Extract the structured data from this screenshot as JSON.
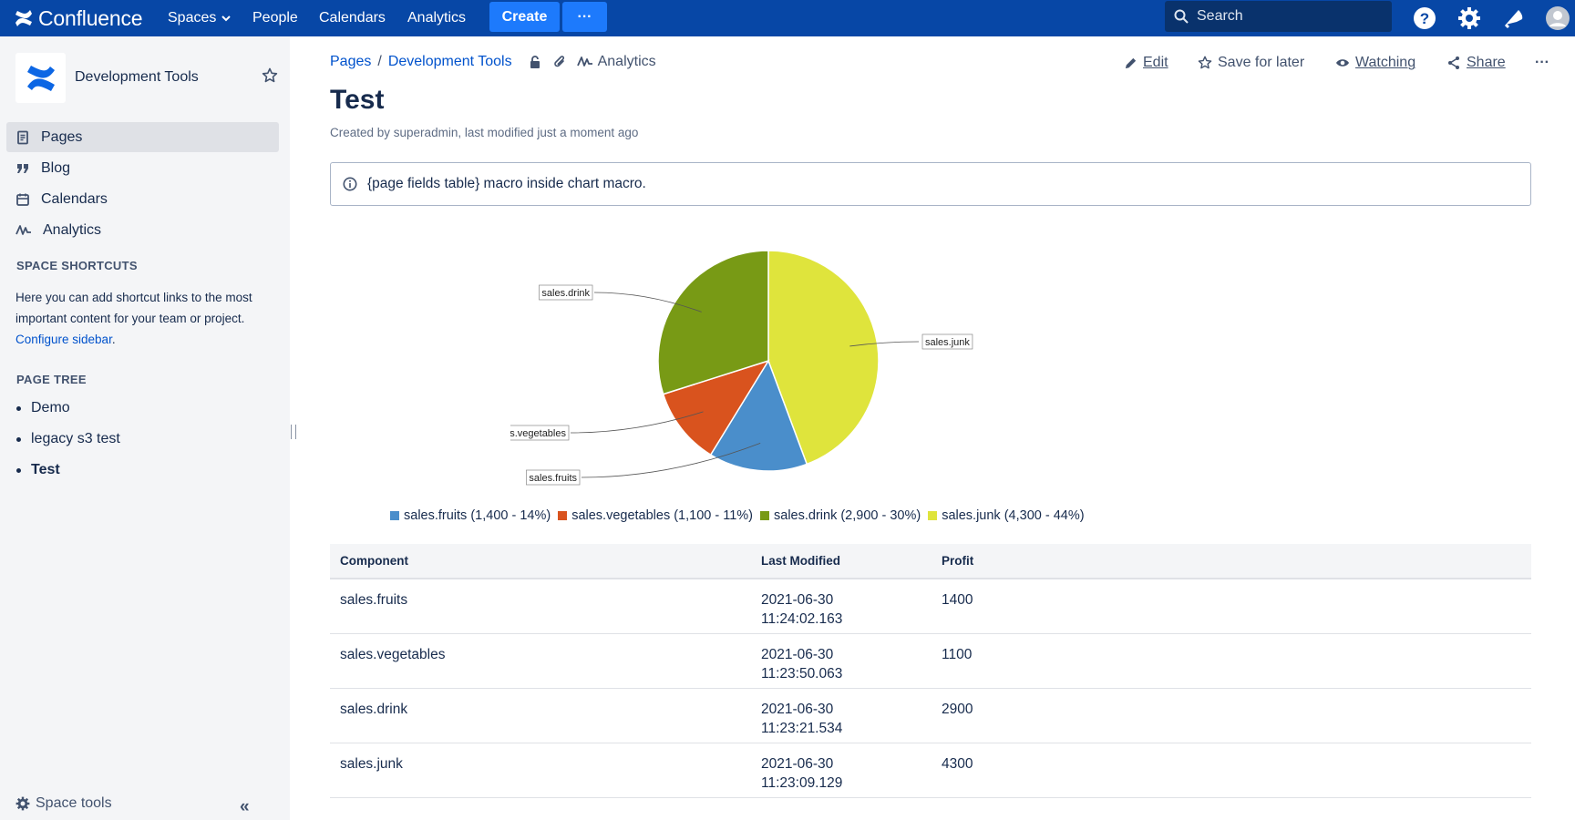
{
  "topbar": {
    "product_name": "Confluence",
    "nav": {
      "spaces": "Spaces",
      "people": "People",
      "calendars": "Calendars",
      "analytics": "Analytics"
    },
    "create_label": "Create",
    "more_label": "···",
    "search_placeholder": "Search",
    "icons": [
      "help-icon",
      "settings-icon",
      "notifications-icon",
      "avatar"
    ],
    "color": "#0747a6"
  },
  "sidebar": {
    "space_name": "Development Tools",
    "items": [
      {
        "label": "Pages",
        "icon": "pages-icon",
        "active": true
      },
      {
        "label": "Blog",
        "icon": "blog-quote-icon",
        "active": false
      },
      {
        "label": "Calendars",
        "icon": "calendar-icon",
        "active": false
      },
      {
        "label": "Analytics",
        "icon": "analytics-icon",
        "active": false
      }
    ],
    "shortcuts_heading": "SPACE SHORTCUTS",
    "shortcuts_text": "Here you can add shortcut links to the most important content for your team or project.",
    "configure_link": "Configure sidebar",
    "shortcuts_end": ".",
    "page_tree_heading": "PAGE TREE",
    "tree": [
      {
        "label": "Demo",
        "current": false
      },
      {
        "label": "legacy s3 test",
        "current": false
      },
      {
        "label": "Test",
        "current": true
      }
    ],
    "space_tools_label": "Space tools"
  },
  "page": {
    "breadcrumb": [
      "Pages",
      "Development Tools"
    ],
    "breadcrumb_sep": "/",
    "analytics_label": "Analytics",
    "actions": {
      "edit": "Edit",
      "save": "Save for later",
      "watching": "Watching",
      "share": "Share",
      "more": "···"
    },
    "title": "Test",
    "byline": "Created by superadmin, last modified just a moment ago",
    "info_text": "{page fields table} macro inside chart macro."
  },
  "chart_data": {
    "type": "pie",
    "categories": [
      "sales.fruits",
      "sales.vegetables",
      "sales.drink",
      "sales.junk"
    ],
    "values": [
      1400,
      1100,
      2900,
      4300
    ],
    "colors": [
      "#4a8ecb",
      "#d9531e",
      "#789a15",
      "#dfe43c"
    ],
    "legend": [
      "sales.fruits (1,400 - 14%)",
      "sales.vegetables (1,100 - 11%)",
      "sales.drink (2,900 - 30%)",
      "sales.junk (4,300 - 44%)"
    ],
    "legend_position": "bottom"
  },
  "table": {
    "headers": [
      "Component",
      "Last Modified",
      "Profit"
    ],
    "rows": [
      {
        "component": "sales.fruits",
        "date": "2021-06-30",
        "time": "11:24:02.163",
        "profit": "1400"
      },
      {
        "component": "sales.vegetables",
        "date": "2021-06-30",
        "time": "11:23:50.063",
        "profit": "1100"
      },
      {
        "component": "sales.drink",
        "date": "2021-06-30",
        "time": "11:23:21.534",
        "profit": "2900"
      },
      {
        "component": "sales.junk",
        "date": "2021-06-30",
        "time": "11:23:09.129",
        "profit": "4300"
      }
    ]
  }
}
